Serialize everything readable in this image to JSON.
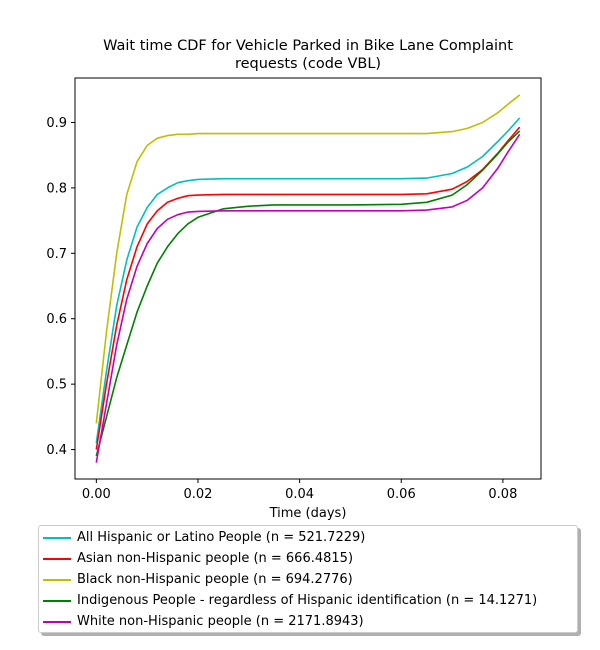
{
  "chart_data": {
    "type": "line",
    "title": "Wait time CDF for Vehicle Parked in Bike Lane Complaint",
    "title_line2": "requests (code VBL)",
    "xlabel": "Time (days)",
    "ylabel": "",
    "xlim": [
      -0.0042,
      0.0875
    ],
    "ylim": [
      0.355,
      0.968
    ],
    "xticks": [
      "0.00",
      "0.02",
      "0.04",
      "0.06",
      "0.08"
    ],
    "xtick_values": [
      0.0,
      0.02,
      0.04,
      0.06,
      0.08
    ],
    "yticks": [
      "0.4",
      "0.5",
      "0.6",
      "0.7",
      "0.8",
      "0.9"
    ],
    "ytick_values": [
      0.4,
      0.5,
      0.6,
      0.7,
      0.8,
      0.9
    ],
    "grid": false,
    "legend_position": "bottom",
    "series": [
      {
        "name": "All Hispanic or Latino People (n = 521.7229)",
        "color": "#00bfbf",
        "x": [
          0.0,
          0.002,
          0.004,
          0.006,
          0.008,
          0.01,
          0.012,
          0.014,
          0.016,
          0.018,
          0.02,
          0.025,
          0.03,
          0.04,
          0.05,
          0.06,
          0.065,
          0.07,
          0.073,
          0.076,
          0.079,
          0.081,
          0.0833
        ],
        "y": [
          0.41,
          0.52,
          0.62,
          0.69,
          0.74,
          0.77,
          0.79,
          0.8,
          0.808,
          0.811,
          0.813,
          0.814,
          0.814,
          0.814,
          0.814,
          0.814,
          0.815,
          0.822,
          0.832,
          0.848,
          0.871,
          0.887,
          0.907
        ]
      },
      {
        "name": "Asian non-Hispanic people (n = 666.4815)",
        "color": "#ff0000",
        "x": [
          0.0,
          0.002,
          0.004,
          0.006,
          0.008,
          0.01,
          0.012,
          0.014,
          0.016,
          0.018,
          0.02,
          0.025,
          0.03,
          0.04,
          0.05,
          0.06,
          0.065,
          0.07,
          0.073,
          0.076,
          0.079,
          0.081,
          0.0833
        ],
        "y": [
          0.4,
          0.5,
          0.59,
          0.66,
          0.71,
          0.745,
          0.765,
          0.778,
          0.784,
          0.788,
          0.789,
          0.79,
          0.79,
          0.79,
          0.79,
          0.79,
          0.791,
          0.798,
          0.81,
          0.828,
          0.853,
          0.872,
          0.893
        ]
      },
      {
        "name": "Black non-Hispanic people (n = 694.2776)",
        "color": "#bfbf00",
        "x": [
          0.0,
          0.002,
          0.004,
          0.006,
          0.008,
          0.01,
          0.012,
          0.014,
          0.016,
          0.018,
          0.02,
          0.025,
          0.03,
          0.04,
          0.05,
          0.06,
          0.065,
          0.07,
          0.073,
          0.076,
          0.079,
          0.081,
          0.0833
        ],
        "y": [
          0.44,
          0.58,
          0.7,
          0.79,
          0.84,
          0.865,
          0.876,
          0.88,
          0.882,
          0.882,
          0.883,
          0.883,
          0.883,
          0.883,
          0.883,
          0.883,
          0.883,
          0.886,
          0.891,
          0.9,
          0.915,
          0.928,
          0.942
        ]
      },
      {
        "name": "Indigenous People - regardless of Hispanic identification (n = 14.1271)",
        "color": "#008000",
        "x": [
          0.0,
          0.002,
          0.004,
          0.006,
          0.008,
          0.01,
          0.012,
          0.014,
          0.016,
          0.018,
          0.02,
          0.025,
          0.03,
          0.035,
          0.04,
          0.05,
          0.06,
          0.065,
          0.07,
          0.073,
          0.076,
          0.079,
          0.081,
          0.0833
        ],
        "y": [
          0.39,
          0.45,
          0.51,
          0.56,
          0.61,
          0.65,
          0.685,
          0.71,
          0.73,
          0.745,
          0.755,
          0.768,
          0.772,
          0.774,
          0.774,
          0.774,
          0.775,
          0.778,
          0.789,
          0.805,
          0.827,
          0.852,
          0.87,
          0.887
        ]
      },
      {
        "name": "White non-Hispanic people (n = 2171.8943)",
        "color": "#bf00bf",
        "x": [
          0.0,
          0.002,
          0.004,
          0.006,
          0.008,
          0.01,
          0.012,
          0.014,
          0.016,
          0.018,
          0.02,
          0.025,
          0.03,
          0.04,
          0.05,
          0.06,
          0.065,
          0.07,
          0.073,
          0.076,
          0.079,
          0.081,
          0.0833
        ],
        "y": [
          0.38,
          0.47,
          0.56,
          0.63,
          0.68,
          0.715,
          0.738,
          0.752,
          0.759,
          0.763,
          0.764,
          0.765,
          0.765,
          0.765,
          0.765,
          0.765,
          0.766,
          0.771,
          0.781,
          0.8,
          0.83,
          0.855,
          0.882
        ]
      }
    ]
  }
}
